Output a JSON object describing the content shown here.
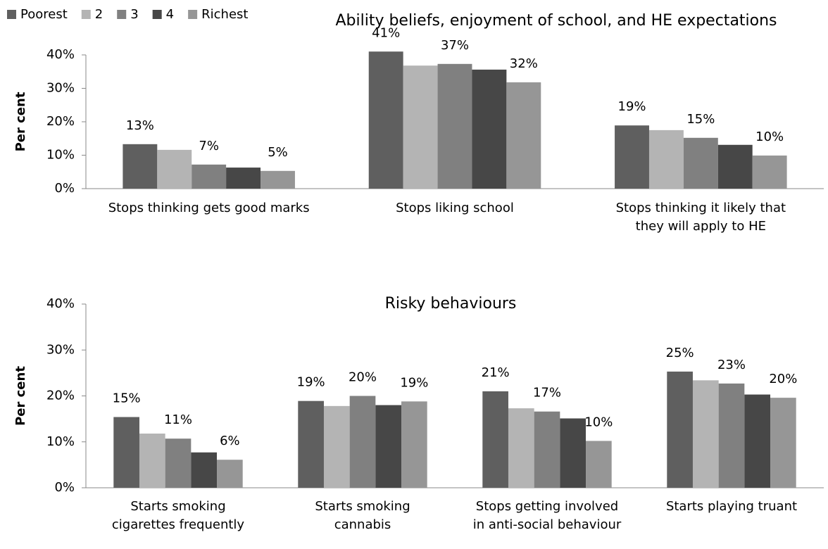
{
  "chart_data": [
    {
      "type": "bar",
      "title": "Ability beliefs, enjoyment of school, and HE expectations",
      "y_label": "Per cent",
      "categories": [
        "Stops thinking gets good marks",
        "Stops liking school",
        "Stops thinking it likely that\nthey will apply to HE"
      ],
      "series": [
        {
          "name": "Poorest",
          "color": "#5f5f5f",
          "values": [
            13.3,
            41,
            18.9
          ],
          "value_labels": [
            "13%",
            "41%",
            "19%"
          ]
        },
        {
          "name": "2",
          "color": "#b4b4b4",
          "values": [
            11.6,
            36.8,
            17.5
          ],
          "value_labels": [
            null,
            null,
            null
          ]
        },
        {
          "name": "3",
          "color": "#808080",
          "values": [
            7.2,
            37.3,
            15.2
          ],
          "value_labels": [
            "7%",
            "37%",
            "15%"
          ]
        },
        {
          "name": "4",
          "color": "#474747",
          "values": [
            6.3,
            35.6,
            13.1
          ],
          "value_labels": [
            null,
            null,
            null
          ]
        },
        {
          "name": "Richest",
          "color": "#969696",
          "values": [
            5.3,
            31.8,
            9.9
          ],
          "value_labels": [
            "5%",
            "32%",
            "10%"
          ]
        }
      ],
      "ylim": [
        0,
        40
      ],
      "yticks": [
        {
          "value": 0,
          "label": "0%"
        },
        {
          "value": 10,
          "label": "10%"
        },
        {
          "value": 20,
          "label": "20%"
        },
        {
          "value": 30,
          "label": "30%"
        },
        {
          "value": 40,
          "label": "40%"
        }
      ],
      "legend": "top-left"
    },
    {
      "type": "bar",
      "title": "Risky behaviours",
      "y_label": "Per cent",
      "categories": [
        "Starts smoking\ncigarettes frequently",
        "Starts smoking\ncannabis",
        "Stops getting involved\nin anti-social behaviour",
        "Starts playing truant"
      ],
      "series": [
        {
          "color": "#5f5f5f",
          "values": [
            15.4,
            18.9,
            21.0,
            25.3
          ],
          "value_labels": [
            "15%",
            "19%",
            "21%",
            "25%"
          ]
        },
        {
          "color": "#b4b4b4",
          "values": [
            11.8,
            17.8,
            17.3,
            23.4
          ],
          "value_labels": [
            null,
            null,
            null,
            null
          ]
        },
        {
          "color": "#808080",
          "values": [
            10.7,
            20.0,
            16.6,
            22.7
          ],
          "value_labels": [
            "11%",
            "20%",
            "17%",
            "23%"
          ]
        },
        {
          "color": "#474747",
          "values": [
            7.7,
            18.0,
            15.1,
            20.3
          ],
          "value_labels": [
            null,
            null,
            null,
            null
          ]
        },
        {
          "color": "#969696",
          "values": [
            6.1,
            18.8,
            10.2,
            19.6
          ],
          "value_labels": [
            "6%",
            "19%",
            "10%",
            "20%"
          ]
        }
      ],
      "ylim": [
        0,
        40
      ],
      "yticks": [
        {
          "value": 0,
          "label": "0%"
        },
        {
          "value": 10,
          "label": "10%"
        },
        {
          "value": 20,
          "label": "20%"
        },
        {
          "value": 30,
          "label": "30%"
        },
        {
          "value": 40,
          "label": "40%"
        }
      ]
    }
  ]
}
